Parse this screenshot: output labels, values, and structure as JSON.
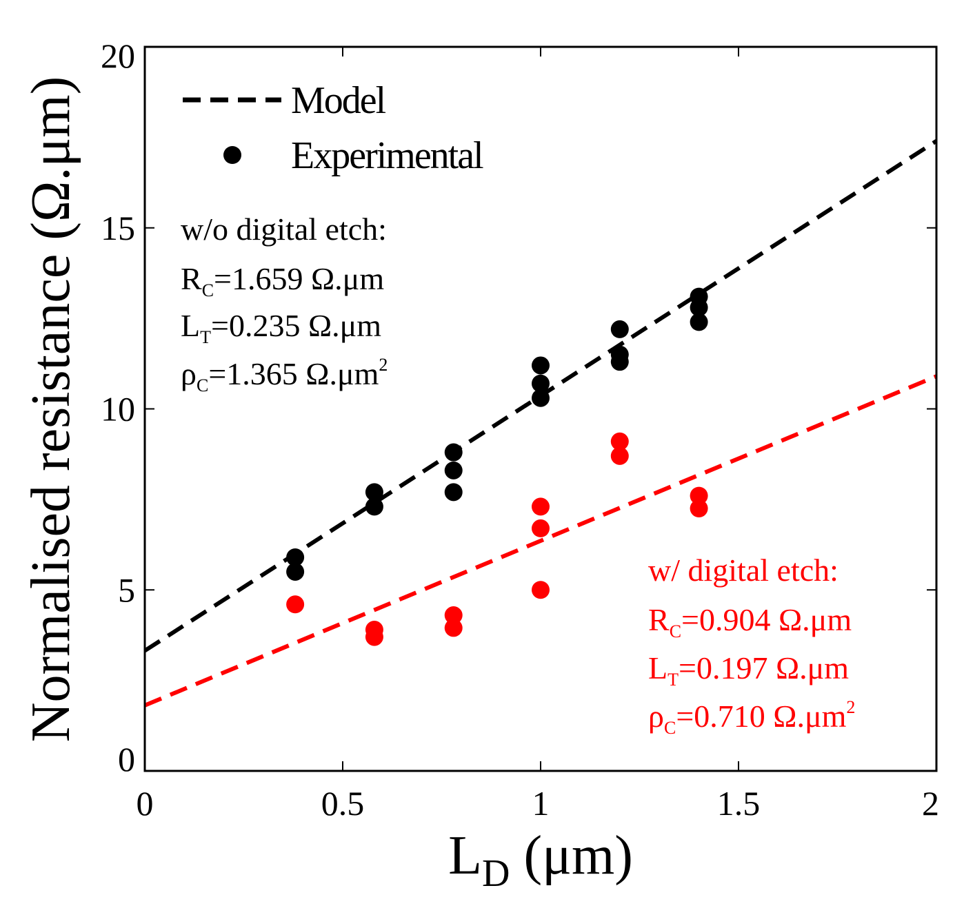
{
  "chart_data": {
    "type": "scatter",
    "title": "",
    "xlabel": {
      "main": "L",
      "sub": "D",
      "unit": " (μm)"
    },
    "ylabel": "Normalised resistance (Ω.μm)",
    "xlim": [
      0,
      2
    ],
    "ylim": [
      0,
      20
    ],
    "xticks": [
      0,
      0.5,
      1,
      1.5,
      2
    ],
    "xtick_labels": [
      "0",
      "0.5",
      "1",
      "1.5",
      "2"
    ],
    "yticks": [
      0,
      5,
      10,
      15,
      20
    ],
    "ytick_labels": [
      "0",
      "5",
      "10",
      "15",
      "20"
    ],
    "grid": false,
    "legend": {
      "position": "top-left",
      "entries": [
        {
          "label": "Model",
          "marker": "dashed-line",
          "color": "#000000"
        },
        {
          "label": "Experimental",
          "marker": "dot",
          "color": "#000000"
        }
      ]
    },
    "series": [
      {
        "name": "w/o digital etch",
        "color": "#000000",
        "experimental": [
          {
            "x": 0.38,
            "y": 5.9
          },
          {
            "x": 0.38,
            "y": 5.5
          },
          {
            "x": 0.58,
            "y": 7.7
          },
          {
            "x": 0.58,
            "y": 7.3
          },
          {
            "x": 0.78,
            "y": 8.8
          },
          {
            "x": 0.78,
            "y": 8.3
          },
          {
            "x": 0.78,
            "y": 7.7
          },
          {
            "x": 1.0,
            "y": 11.2
          },
          {
            "x": 1.0,
            "y": 10.7
          },
          {
            "x": 1.0,
            "y": 10.3
          },
          {
            "x": 1.2,
            "y": 12.2
          },
          {
            "x": 1.2,
            "y": 11.5
          },
          {
            "x": 1.2,
            "y": 11.3
          },
          {
            "x": 1.4,
            "y": 13.1
          },
          {
            "x": 1.4,
            "y": 12.8
          },
          {
            "x": 1.4,
            "y": 12.4
          }
        ],
        "model": {
          "x": [
            0,
            2
          ],
          "y": [
            3.32,
            17.4
          ]
        }
      },
      {
        "name": "w/ digital etch",
        "color": "#ff0000",
        "experimental": [
          {
            "x": 0.38,
            "y": 4.6
          },
          {
            "x": 0.58,
            "y": 3.9
          },
          {
            "x": 0.58,
            "y": 3.7
          },
          {
            "x": 0.78,
            "y": 4.3
          },
          {
            "x": 0.78,
            "y": 3.95
          },
          {
            "x": 1.0,
            "y": 7.3
          },
          {
            "x": 1.0,
            "y": 6.7
          },
          {
            "x": 1.0,
            "y": 5.0
          },
          {
            "x": 1.2,
            "y": 9.1
          },
          {
            "x": 1.2,
            "y": 8.7
          },
          {
            "x": 1.4,
            "y": 7.6
          },
          {
            "x": 1.4,
            "y": 7.25
          }
        ],
        "model": {
          "x": [
            0,
            2
          ],
          "y": [
            1.81,
            10.9
          ]
        }
      }
    ],
    "annotations": [
      {
        "id": "black",
        "color": "#000000",
        "heading": "w/o digital etch:",
        "rows": [
          {
            "sym": "R",
            "sub": "C",
            "value": "=1.659 Ω.μm",
            "sup": ""
          },
          {
            "sym": "L",
            "sub": "T",
            "value": "=0.235 Ω.μm",
            "sup": ""
          },
          {
            "sym": "ρ",
            "sub": "C",
            "value": "=1.365 Ω.μm",
            "sup": "2"
          }
        ]
      },
      {
        "id": "red",
        "color": "#ff0000",
        "heading": "w/ digital etch:",
        "rows": [
          {
            "sym": "R",
            "sub": "C",
            "value": "=0.904 Ω.μm",
            "sup": ""
          },
          {
            "sym": "L",
            "sub": "T",
            "value": "=0.197 Ω.μm",
            "sup": ""
          },
          {
            "sym": "ρ",
            "sub": "C",
            "value": "=0.710 Ω.μm",
            "sup": "2"
          }
        ]
      }
    ]
  }
}
